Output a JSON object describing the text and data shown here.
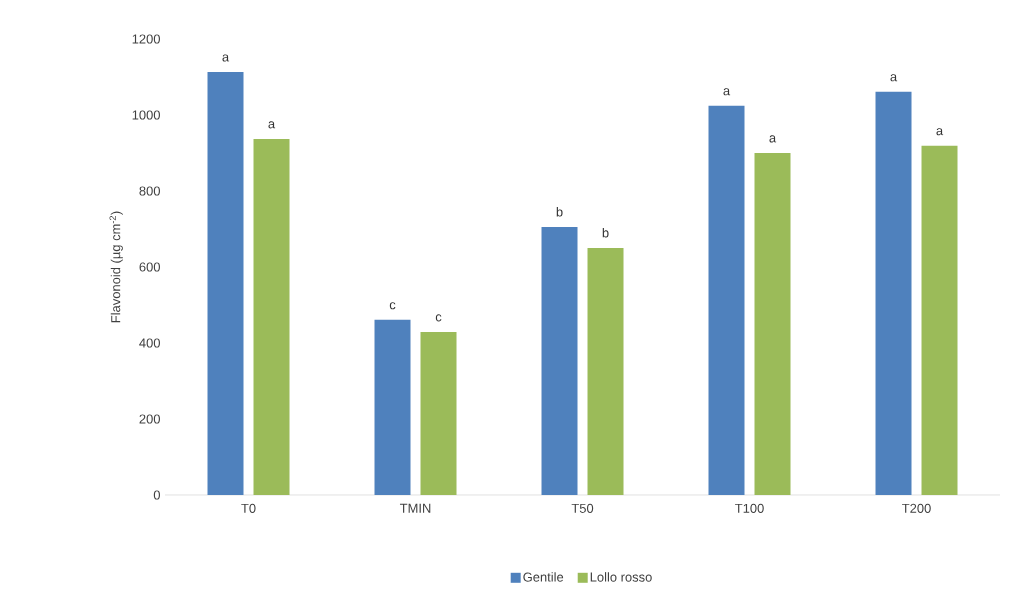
{
  "chart_data": {
    "type": "bar",
    "ylabel": "Flavonoid (µg cm$^{-2}$)",
    "categories": [
      "T0",
      "TMIN",
      "T50",
      "T100",
      "T200"
    ],
    "series": [
      {
        "name": "Gentile",
        "color": "#4f81bd",
        "values": [
          1113,
          461,
          705,
          1024,
          1061
        ]
      },
      {
        "name": "Lollo rosso",
        "color": "#9bbb59",
        "values": [
          937,
          429,
          650,
          900,
          919
        ]
      }
    ],
    "ylim": [
      0,
      1200
    ],
    "yticks": [
      0,
      200,
      400,
      600,
      800,
      1000,
      1200
    ],
    "grid": false,
    "legend": "bottom",
    "annotations": [
      {
        "text": "a",
        "x": "T0",
        "y": 1113
      },
      {
        "text": "a",
        "x": "T0",
        "y": 937
      },
      {
        "text": "c",
        "x": "TMIN",
        "y": 461
      },
      {
        "text": "c",
        "x": "TMIN",
        "y": 429
      },
      {
        "text": "b",
        "x": "T50",
        "y": 705
      },
      {
        "text": "b",
        "x": "T50",
        "y": 650
      },
      {
        "text": "a",
        "x": "T100",
        "y": 1024
      },
      {
        "text": "a",
        "x": "T100",
        "y": 900
      },
      {
        "text": "a",
        "x": "T200",
        "y": 1061
      },
      {
        "text": "a",
        "x": "T200",
        "y": 919
      }
    ]
  }
}
